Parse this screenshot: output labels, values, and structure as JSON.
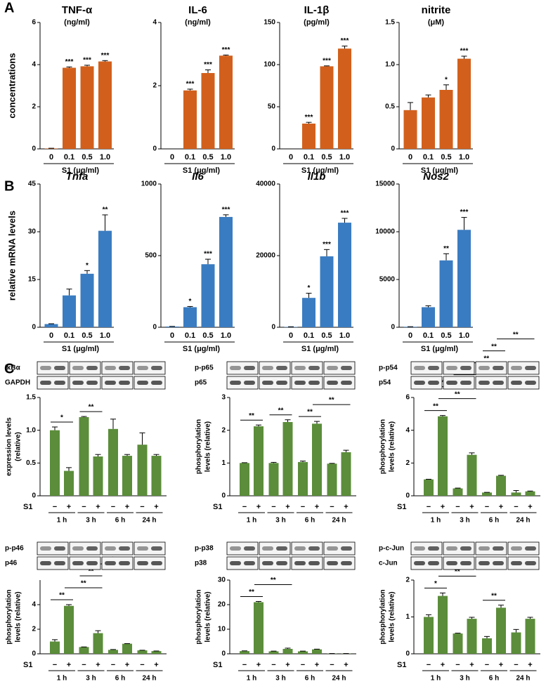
{
  "panel_labels": [
    "A",
    "B",
    "C"
  ],
  "chart_data": [
    {
      "type": "bar",
      "title": "TNF-α",
      "subtitle": "(ng/ml)",
      "ylabel": [
        "concentrations"
      ],
      "xlabel": "S1 (μg/ml)",
      "color": "#d2601c",
      "categories": [
        "0",
        "0.1",
        "0.5",
        "1.0"
      ],
      "values": [
        0.02,
        3.85,
        3.92,
        4.15
      ],
      "errors": [
        0.01,
        0.04,
        0.05,
        0.04
      ],
      "annotations": [
        null,
        "***",
        "***",
        "***"
      ],
      "ylim": [
        0,
        6
      ],
      "yticks": [
        0,
        2,
        4,
        6
      ]
    },
    {
      "type": "bar",
      "title": "IL-6",
      "subtitle": "(ng/ml)",
      "xlabel": "S1 (μg/ml)",
      "color": "#d2601c",
      "categories": [
        "0",
        "0.1",
        "0.5",
        "1.0"
      ],
      "values": [
        0,
        1.85,
        2.4,
        2.95
      ],
      "errors": [
        0,
        0.04,
        0.1,
        0.02
      ],
      "annotations": [
        null,
        "***",
        "***",
        "***"
      ],
      "ylim": [
        0,
        4
      ],
      "yticks": [
        0,
        2,
        4
      ]
    },
    {
      "type": "bar",
      "title": "IL-1β",
      "subtitle": "(pg/ml)",
      "xlabel": "S1 (μg/ml)",
      "color": "#d2601c",
      "categories": [
        "0",
        "0.1",
        "0.5",
        "1.0"
      ],
      "values": [
        0,
        30,
        98,
        119
      ],
      "errors": [
        0,
        1.5,
        0.5,
        3
      ],
      "annotations": [
        null,
        "***",
        "***",
        "***"
      ],
      "ylim": [
        0,
        150
      ],
      "yticks": [
        0,
        50,
        100,
        150
      ]
    },
    {
      "type": "bar",
      "title": "nitrite",
      "subtitle": "(μM)",
      "xlabel": "S1 (μg/ml)",
      "color": "#d2601c",
      "categories": [
        "0",
        "0.1",
        "0.5",
        "1.0"
      ],
      "values": [
        0.46,
        0.61,
        0.7,
        1.07
      ],
      "errors": [
        0.09,
        0.03,
        0.06,
        0.03
      ],
      "annotations": [
        null,
        null,
        "*",
        "***"
      ],
      "ylim": [
        0,
        1.5
      ],
      "yticks": [
        0,
        0.5,
        {
          "value": 1,
          "label": "1.0"
        },
        1.5
      ]
    },
    {
      "type": "bar",
      "title": "Tnfa",
      "ylabel": [
        "relative mRNA levels"
      ],
      "xlabel": "S1 (μg/ml)",
      "color": "#3a7cc1",
      "categories": [
        "0",
        "0.1",
        "0.5",
        "1.0"
      ],
      "values": [
        1,
        10,
        16.8,
        30.3
      ],
      "errors": [
        0.1,
        2,
        1,
        5
      ],
      "annotations": [
        null,
        null,
        "*",
        "**"
      ],
      "ylim": [
        0,
        45
      ],
      "yticks": [
        0,
        15,
        30,
        45
      ]
    },
    {
      "type": "bar",
      "title": "Il6",
      "xlabel": "S1 (μg/ml)",
      "color": "#3a7cc1",
      "categories": [
        "0",
        "0.1",
        "0.5",
        "1.0"
      ],
      "values": [
        5,
        140,
        440,
        770
      ],
      "errors": [
        1,
        5,
        35,
        15
      ],
      "annotations": [
        null,
        "*",
        "***",
        "***"
      ],
      "ylim": [
        0,
        1000
      ],
      "yticks": [
        0,
        500,
        1000
      ]
    },
    {
      "type": "bar",
      "title": "Il1b",
      "xlabel": "S1 (μg/ml)",
      "color": "#3a7cc1",
      "categories": [
        "0",
        "0.1",
        "0.5",
        "1.0"
      ],
      "values": [
        100,
        8200,
        19800,
        29200
      ],
      "errors": [
        50,
        1300,
        1900,
        1200
      ],
      "annotations": [
        null,
        "*",
        "***",
        "***"
      ],
      "ylim": [
        0,
        40000
      ],
      "yticks": [
        0,
        20000,
        40000
      ]
    },
    {
      "type": "bar",
      "title": "Nos2",
      "xlabel": "S1 (μg/ml)",
      "color": "#3a7cc1",
      "categories": [
        "0",
        "0.1",
        "0.5",
        "1.0"
      ],
      "values": [
        50,
        2100,
        7000,
        10200
      ],
      "errors": [
        10,
        150,
        700,
        1300
      ],
      "annotations": [
        null,
        null,
        "**",
        "***"
      ],
      "ylim": [
        0,
        15000
      ],
      "yticks": [
        0,
        5000,
        10000,
        15000
      ]
    },
    {
      "type": "bar",
      "blot_labels": [
        "IκBα",
        "GAPDH"
      ],
      "ylabel": [
        "expression levels",
        "(relative)"
      ],
      "xlabel": "S1",
      "color": "#5b8d3a",
      "categories": [
        "−",
        "+",
        "−",
        "+",
        "−",
        "+",
        "−",
        "+"
      ],
      "groups": [
        "1 h",
        "3 h",
        "6 h",
        "24 h"
      ],
      "values": [
        1.0,
        0.38,
        1.2,
        0.6,
        1.02,
        0.61,
        0.78,
        0.61
      ],
      "errors": [
        0.05,
        0.05,
        0.01,
        0.03,
        0.15,
        0.02,
        0.18,
        0.02
      ],
      "comparisons": [
        {
          "from": 0,
          "to": 1,
          "label": "*"
        },
        {
          "from": 2,
          "to": 3,
          "label": "**"
        }
      ],
      "ylim": [
        0,
        1.5
      ],
      "yticks": [
        0,
        0.5,
        {
          "value": 1,
          "label": "1.0"
        },
        1.5
      ]
    },
    {
      "type": "bar",
      "blot_labels": [
        "p-p65",
        "p65"
      ],
      "ylabel": [
        "phosphorylation",
        "levels (relative)"
      ],
      "xlabel": "S1",
      "color": "#5b8d3a",
      "categories": [
        "−",
        "+",
        "−",
        "+",
        "−",
        "+",
        "−",
        "+"
      ],
      "groups": [
        "1 h",
        "3 h",
        "6 h",
        "24 h"
      ],
      "values": [
        1.0,
        2.12,
        1.0,
        2.25,
        1.03,
        2.2,
        0.98,
        1.33
      ],
      "errors": [
        0.01,
        0.04,
        0.02,
        0.07,
        0.03,
        0.07,
        0.01,
        0.06
      ],
      "comparisons": [
        {
          "from": 0,
          "to": 1,
          "label": "**"
        },
        {
          "from": 2,
          "to": 3,
          "label": "**"
        },
        {
          "from": 4,
          "to": 5,
          "label": "**"
        },
        {
          "from": 5,
          "to": 7,
          "label": "**"
        }
      ],
      "ylim": [
        0,
        3
      ],
      "yticks": [
        0,
        1,
        2,
        3
      ]
    },
    {
      "type": "bar",
      "blot_labels": [
        "p-p54",
        "p54"
      ],
      "ylabel": [
        "phosphorylation",
        "levels (relative)"
      ],
      "xlabel": "S1",
      "color": "#5b8d3a",
      "categories": [
        "−",
        "+",
        "−",
        "+",
        "−",
        "+",
        "−",
        "+"
      ],
      "groups": [
        "1 h",
        "3 h",
        "6 h",
        "24 h"
      ],
      "values": [
        1.0,
        4.85,
        0.45,
        2.5,
        0.2,
        1.22,
        0.2,
        0.27
      ],
      "errors": [
        0.01,
        0.05,
        0.02,
        0.12,
        0.01,
        0.03,
        0.12,
        0.02
      ],
      "comparisons": [
        {
          "from": 0,
          "to": 1,
          "label": "**"
        },
        {
          "from": 1,
          "to": 3,
          "label": "**"
        },
        {
          "from": 0,
          "to": 2,
          "label": "**"
        },
        {
          "from": 2,
          "to": 3,
          "label": "**"
        },
        {
          "from": 3,
          "to": 5,
          "label": "**"
        },
        {
          "from": 4,
          "to": 5,
          "label": "**"
        },
        {
          "from": 5,
          "to": 7,
          "label": "**"
        }
      ],
      "ylim": [
        0,
        6
      ],
      "yticks": [
        0,
        2,
        4,
        6
      ]
    },
    {
      "type": "bar",
      "blot_labels": [
        "p-p46",
        "p46"
      ],
      "ylabel": [
        "phosphorylation",
        "levels (relative)"
      ],
      "xlabel": "S1",
      "color": "#5b8d3a",
      "categories": [
        "−",
        "+",
        "−",
        "+",
        "−",
        "+",
        "−",
        "+"
      ],
      "groups": [
        "1 h",
        "3 h",
        "6 h",
        "24 h"
      ],
      "values": [
        1.0,
        3.9,
        0.55,
        1.68,
        0.32,
        0.82,
        0.28,
        0.22
      ],
      "errors": [
        0.15,
        0.1,
        0.01,
        0.2,
        0.03,
        0.01,
        0.01,
        0.01
      ],
      "comparisons": [
        {
          "from": 0,
          "to": 1,
          "label": "**"
        },
        {
          "from": 1,
          "to": 3,
          "label": "**"
        },
        {
          "from": 2,
          "to": 3,
          "label": "**"
        },
        {
          "from": 3,
          "to": 5,
          "label": "*"
        }
      ],
      "ylim": [
        0,
        6
      ],
      "yticks": [
        0,
        2,
        4
      ]
    },
    {
      "type": "bar",
      "blot_labels": [
        "p-p38",
        "p38"
      ],
      "ylabel": [
        "phosphorylation",
        "levels (relative)"
      ],
      "xlabel": "S1",
      "color": "#5b8d3a",
      "categories": [
        "−",
        "+",
        "−",
        "+",
        "−",
        "+",
        "−",
        "+"
      ],
      "groups": [
        "1 h",
        "3 h",
        "6 h",
        "24 h"
      ],
      "values": [
        1.1,
        21,
        1.0,
        2.0,
        1.0,
        1.8,
        0.1,
        0.1
      ],
      "errors": [
        0.1,
        0.3,
        0.1,
        0.3,
        0.1,
        0.1,
        0.02,
        0.02
      ],
      "comparisons": [
        {
          "from": 0,
          "to": 1,
          "label": "**"
        },
        {
          "from": 1,
          "to": 3,
          "label": "**"
        }
      ],
      "ylim": [
        0,
        30
      ],
      "yticks": [
        0,
        10,
        20,
        30
      ]
    },
    {
      "type": "bar",
      "blot_labels": [
        "p-c-Jun",
        "c-Jun"
      ],
      "ylabel": [
        "phosphorylation",
        "levels (relative)"
      ],
      "xlabel": "S1",
      "color": "#5b8d3a",
      "categories": [
        "−",
        "+",
        "−",
        "+",
        "−",
        "+",
        "−",
        "+"
      ],
      "groups": [
        "1 h",
        "3 h",
        "6 h",
        "24 h"
      ],
      "values": [
        1.0,
        1.57,
        0.55,
        0.95,
        0.42,
        1.25,
        0.58,
        0.95
      ],
      "errors": [
        0.06,
        0.08,
        0.01,
        0.04,
        0.05,
        0.07,
        0.08,
        0.04
      ],
      "comparisons": [
        {
          "from": 0,
          "to": 1,
          "label": "*"
        },
        {
          "from": 1,
          "to": 3,
          "label": "**"
        },
        {
          "from": 4,
          "to": 5,
          "label": "**"
        }
      ],
      "ylim": [
        0,
        2
      ],
      "yticks": [
        0,
        1,
        2
      ]
    }
  ]
}
